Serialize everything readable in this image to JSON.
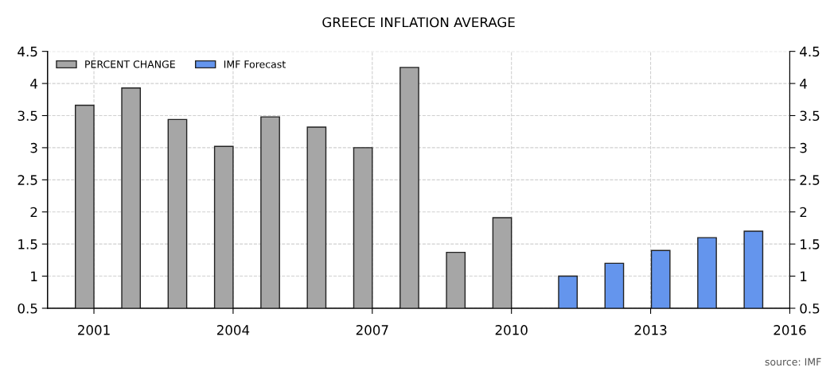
{
  "chart_data": {
    "type": "bar",
    "title": "GREECE INFLATION AVERAGE",
    "series": [
      {
        "name": "PERCENT CHANGE",
        "color": "#a6a6a6",
        "x": [
          "2001",
          "2002",
          "2003",
          "2004",
          "2005",
          "2006",
          "2007",
          "2008",
          "2009",
          "2010"
        ],
        "values": [
          3.66,
          3.93,
          3.44,
          3.02,
          3.48,
          3.32,
          3.0,
          4.25,
          1.37,
          1.91
        ]
      },
      {
        "name": "IMF Forecast",
        "color": "#6495ed",
        "x": [
          "2011-06",
          "2012-06",
          "2013-06",
          "2014-06",
          "2015-06"
        ],
        "values": [
          1.0,
          1.2,
          1.4,
          1.6,
          1.7
        ]
      }
    ],
    "xlim": [
      "2000",
      "2016"
    ],
    "xticks": [
      "2001",
      "2004",
      "2007",
      "2010",
      "2013",
      "2016"
    ],
    "ylim": [
      0.5,
      4.5
    ],
    "yticks": [
      0.5,
      1,
      1.5,
      2,
      2.5,
      3,
      3.5,
      4,
      4.5
    ],
    "y2lim": [
      0.5,
      4.5
    ],
    "y2ticks": [
      0.5,
      1,
      1.5,
      2,
      2.5,
      3,
      3.5,
      4,
      4.5
    ],
    "grid": true,
    "legend": "top left",
    "annotations": [
      "source: IMF"
    ]
  }
}
